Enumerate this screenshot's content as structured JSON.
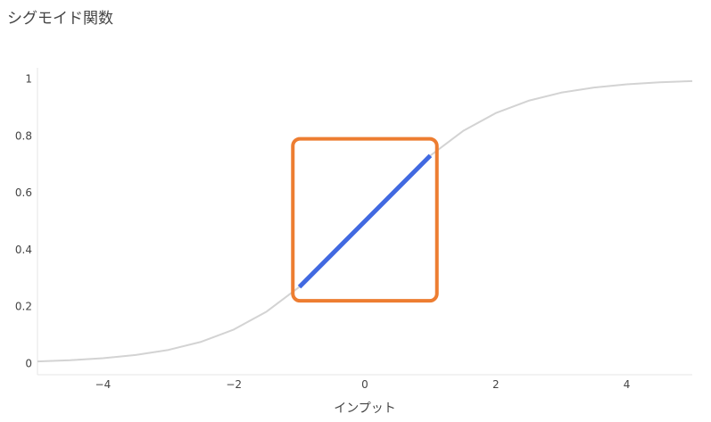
{
  "chart_data": {
    "type": "line",
    "title": "シグモイド関数",
    "xlabel": "インプット",
    "ylabel": "",
    "xlim": [
      -5,
      5
    ],
    "ylim": [
      -0.04,
      1.04
    ],
    "xticks": [
      -4,
      -2,
      0,
      2,
      4
    ],
    "xtick_labels": [
      "−4",
      "−2",
      "0",
      "2",
      "4"
    ],
    "yticks": [
      0,
      0.2,
      0.4,
      0.6,
      0.8,
      1
    ],
    "ytick_labels": [
      "0",
      "0.2",
      "0.4",
      "0.6",
      "0.8",
      "1"
    ],
    "grid": false,
    "series": [
      {
        "color": "#d3d3d3",
        "x": [
          -5,
          -4.5,
          -4,
          -3.5,
          -3,
          -2.5,
          -2,
          -1.5,
          -1,
          -0.5,
          0,
          0.5,
          1,
          1.5,
          2,
          2.5,
          3,
          3.5,
          4,
          4.5,
          5
        ],
        "y": [
          0.0067,
          0.011,
          0.018,
          0.0293,
          0.0474,
          0.0759,
          0.1192,
          0.1824,
          0.2689,
          0.3775,
          0.5,
          0.6225,
          0.7311,
          0.8176,
          0.8808,
          0.9241,
          0.9526,
          0.9707,
          0.982,
          0.989,
          0.9933
        ]
      },
      {
        "color": "#4169e1",
        "x": [
          -1,
          1
        ],
        "y": [
          0.2689,
          0.7311
        ]
      }
    ],
    "annotations": [
      {
        "type": "rect",
        "x": [
          -1.1,
          1.1
        ],
        "y": [
          0.22,
          0.79
        ],
        "color": "#ed7d31"
      }
    ]
  }
}
